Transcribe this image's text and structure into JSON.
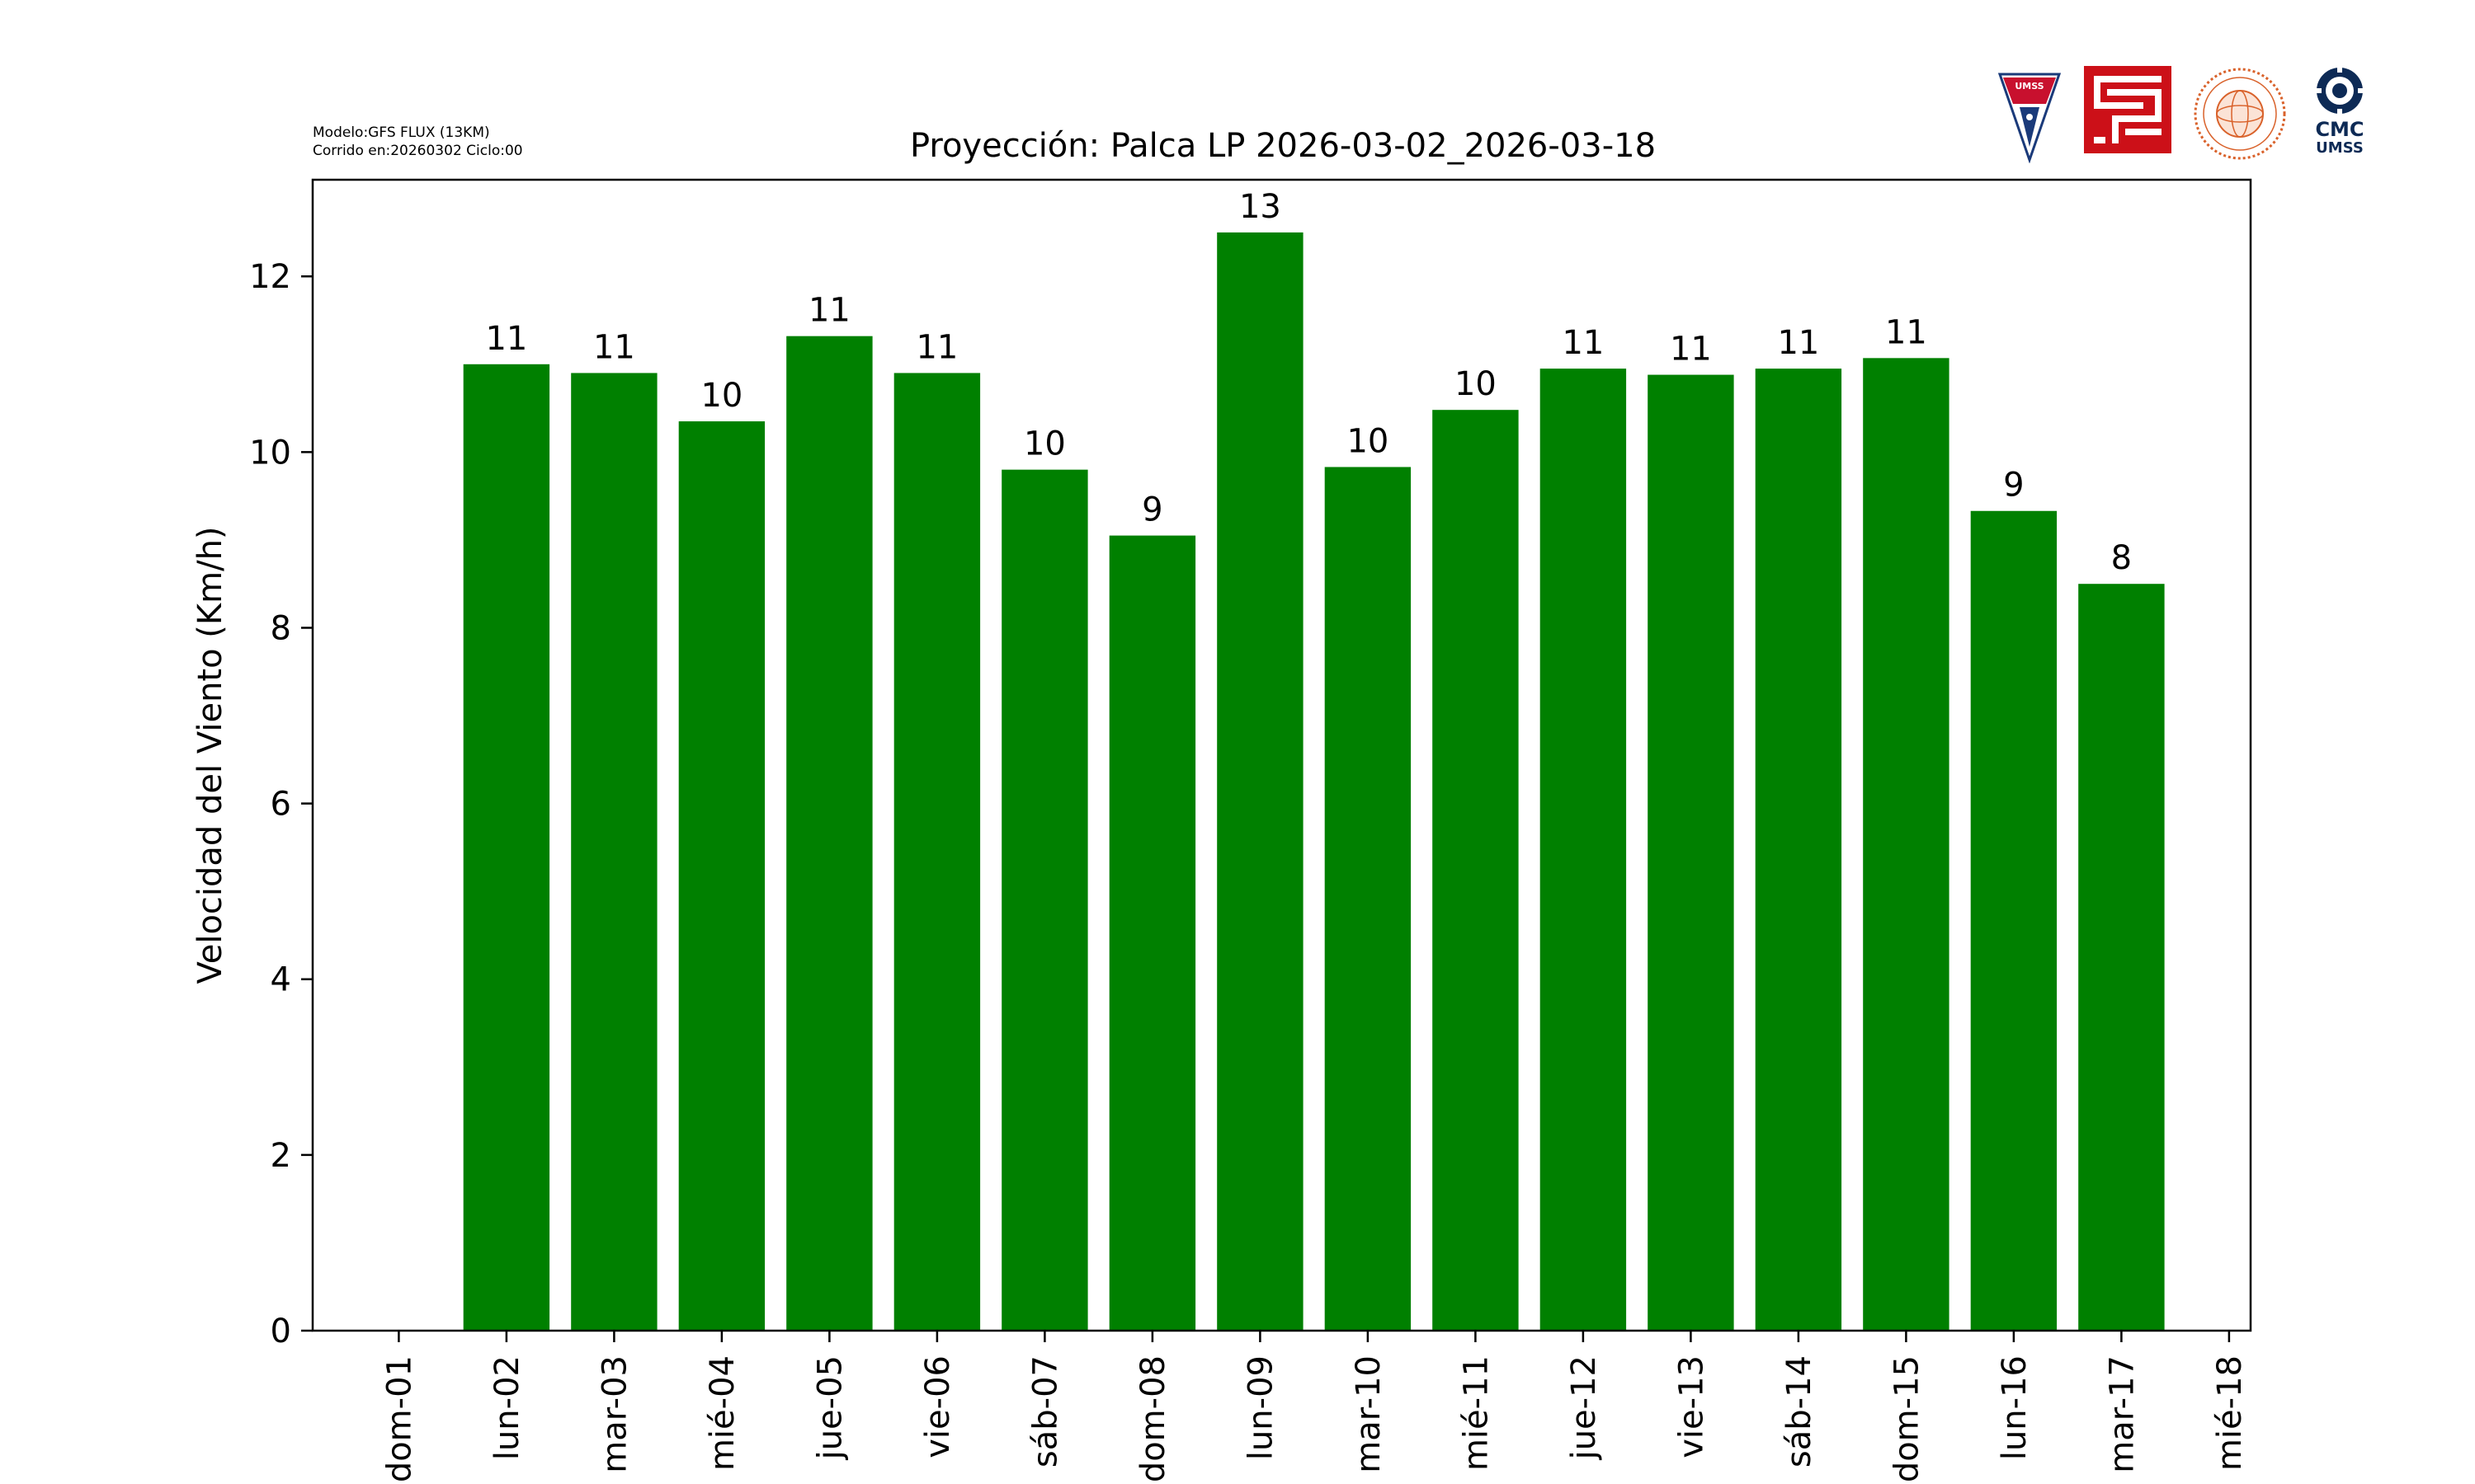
{
  "model_info": {
    "line1": "Modelo:GFS FLUX (13KM)",
    "line2": "Corrido en:20260302 Ciclo:00"
  },
  "logos": {
    "umss_shield_text": "UMSS",
    "cmc_title": "CMC",
    "cmc_subtitle": "UMSS",
    "colors": {
      "red": "#c8102e",
      "darkred": "#cc1018",
      "navy": "#0d2a55",
      "orange": "#d9622b"
    }
  },
  "chart_data": {
    "type": "bar",
    "title": "Proyección: Palca LP  2026-03-02_2026-03-18",
    "ylabel": "Velocidad del Viento (Km/h)",
    "xlabel": "",
    "bar_color": "#008000",
    "ylim": [
      0,
      13.1
    ],
    "yticks": [
      0,
      2,
      4,
      6,
      8,
      10,
      12
    ],
    "x_ticks": [
      "dom-01",
      "lun-02",
      "mar-03",
      "mié-04",
      "jue-05",
      "vie-06",
      "sáb-07",
      "dom-08",
      "lun-09",
      "mar-10",
      "mié-11",
      "jue-12",
      "vie-13",
      "sáb-14",
      "dom-15",
      "lun-16",
      "mar-17",
      "mié-18"
    ],
    "categories": [
      "lun-02",
      "mar-03",
      "mié-04",
      "jue-05",
      "vie-06",
      "sáb-07",
      "dom-08",
      "lun-09",
      "mar-10",
      "mié-11",
      "jue-12",
      "vie-13",
      "sáb-14",
      "dom-15",
      "lun-16",
      "mar-17"
    ],
    "values": [
      11.0,
      10.9,
      10.35,
      11.32,
      10.9,
      9.8,
      9.05,
      12.5,
      9.83,
      10.48,
      10.95,
      10.88,
      10.95,
      11.07,
      9.33,
      8.5
    ],
    "data_labels": [
      "11",
      "11",
      "10",
      "11",
      "11",
      "10",
      "9",
      "13",
      "10",
      "10",
      "11",
      "11",
      "11",
      "11",
      "9",
      "8"
    ],
    "grid": false,
    "legend": "none"
  }
}
